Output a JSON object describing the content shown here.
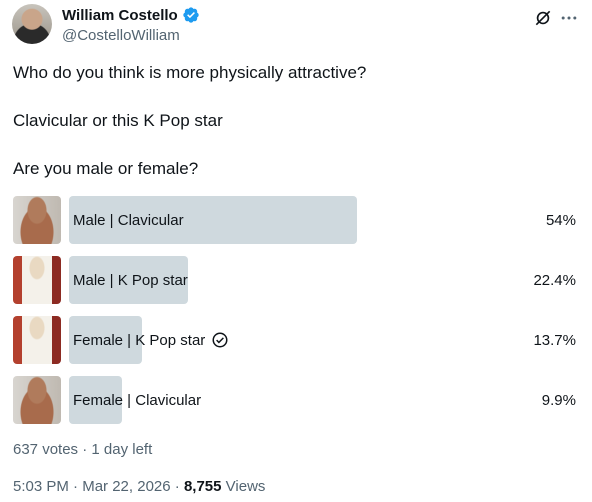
{
  "author": {
    "name": "William Costello",
    "handle": "@CostelloWilliam"
  },
  "tweet": {
    "lines": [
      "Who do you think is more physically attractive?",
      "Clavicular or this K Pop star",
      "Are you male or female?"
    ]
  },
  "poll": {
    "options": [
      {
        "label": "Male | Clavicular",
        "percent_text": "54%",
        "percent": 54,
        "image": "clavicular-photo",
        "selected": false
      },
      {
        "label": "Male | K Pop star",
        "percent_text": "22.4%",
        "percent": 22.4,
        "image": "kpop-star-photo",
        "selected": false
      },
      {
        "label": "Female | K Pop star",
        "percent_text": "13.7%",
        "percent": 13.7,
        "image": "kpop-star-photo",
        "selected": true
      },
      {
        "label": "Female | Clavicular",
        "percent_text": "9.9%",
        "percent": 9.9,
        "image": "clavicular-photo",
        "selected": false
      }
    ],
    "votes_text": "637 votes",
    "time_left": "1 day left"
  },
  "meta": {
    "time": "5:03 PM",
    "date": "Mar 22, 2026",
    "views_count": "8,755",
    "views_label": "Views"
  },
  "colors": {
    "bar": "#cfd9de",
    "verified": "#1d9bf0",
    "secondary_text": "#536471"
  },
  "icons": [
    "verified-badge-icon",
    "grok-icon",
    "more-icon",
    "check-circle-icon"
  ]
}
